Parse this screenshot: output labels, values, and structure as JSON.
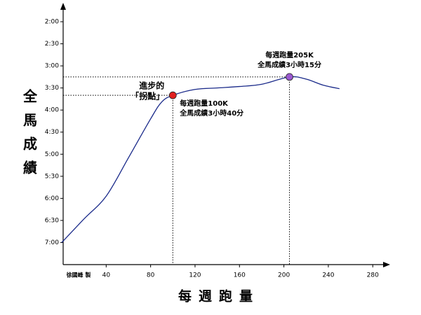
{
  "chart_data": {
    "type": "line",
    "xlabel": "每週跑量",
    "ylabel": "全馬成績",
    "credit": "徐國峰 製",
    "x": [
      0,
      20,
      40,
      60,
      80,
      90,
      100,
      120,
      140,
      160,
      180,
      205,
      220,
      235,
      250
    ],
    "values": [
      420,
      388,
      357,
      305,
      252,
      229,
      220,
      212,
      210,
      208,
      205,
      195,
      198,
      206,
      211
    ],
    "color": "#1a2a8a",
    "xlim": [
      0,
      295
    ],
    "xticks": [
      40,
      80,
      120,
      160,
      200,
      240,
      280
    ],
    "ylim": [
      450,
      100
    ],
    "yticks": [
      {
        "value": 120,
        "label": "2:00"
      },
      {
        "value": 150,
        "label": "2:30"
      },
      {
        "value": 180,
        "label": "3:00"
      },
      {
        "value": 210,
        "label": "3:30"
      },
      {
        "value": 240,
        "label": "4:00"
      },
      {
        "value": 270,
        "label": "4:30"
      },
      {
        "value": 300,
        "label": "5:00"
      },
      {
        "value": 330,
        "label": "5:30"
      },
      {
        "value": 360,
        "label": "6:00"
      },
      {
        "value": 390,
        "label": "6:30"
      },
      {
        "value": 420,
        "label": "7:00"
      }
    ],
    "note_color": "#8e2fbf",
    "highlights": [
      {
        "x": 100,
        "y": 220,
        "color": "#e02020",
        "label": [
          "進步的",
          "「拐點」"
        ],
        "note": [
          "每週跑量100K",
          "全馬成績3小時40分"
        ]
      },
      {
        "x": 205,
        "y": 195,
        "color": "#9b59d0",
        "note": [
          "每週跑量205K",
          "全馬成績3小時15分"
        ]
      }
    ]
  }
}
